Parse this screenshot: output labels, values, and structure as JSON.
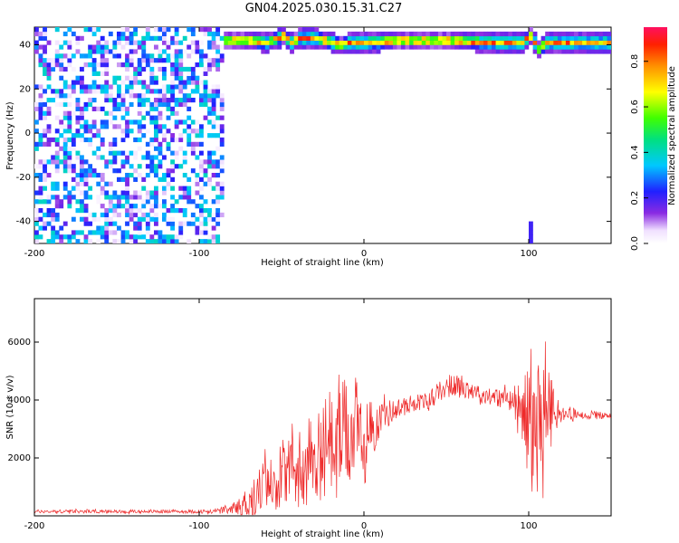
{
  "title": "GN04.2025.030.15.31.C27",
  "chart_data": [
    {
      "type": "heatmap",
      "title": "GN04.2025.030.15.31.C27",
      "xlabel": "Height of straight line (km)",
      "ylabel": "Frequency (Hz)",
      "xlim": [
        -200,
        150
      ],
      "ylim": [
        -50,
        48
      ],
      "x_ticks": [
        "-200",
        "-100",
        "0",
        "100"
      ],
      "y_ticks": [
        "40",
        "20",
        "0",
        "-20",
        "-40"
      ],
      "colorbar": {
        "label": "Normalized spectral amplitude",
        "range": [
          0,
          0.95
        ],
        "ticks": [
          "0.0",
          "0.2",
          "0.4",
          "0.6",
          "0.8"
        ]
      },
      "features": [
        {
          "name": "broadband noise",
          "x_range": [
            -200,
            -85
          ],
          "y_range": [
            -50,
            48
          ],
          "amplitude": [
            0.0,
            0.4
          ]
        },
        {
          "name": "tone band",
          "x_range": [
            -85,
            150
          ],
          "center_hz": 40,
          "peak_amplitude": 0.9
        },
        {
          "name": "isolated streak",
          "x": 100,
          "y_range": [
            -50,
            -42
          ],
          "amplitude": 0.2
        }
      ],
      "band_center": {
        "x": [
          -85,
          -70,
          -60,
          -50,
          -45,
          -40,
          -30,
          -20,
          -15,
          -10,
          0,
          20,
          50,
          80,
          95,
          100,
          105,
          110,
          150
        ],
        "y": [
          41,
          41,
          40,
          43,
          40,
          42,
          42,
          40,
          39,
          40,
          40,
          41,
          41,
          40,
          40,
          43,
          37,
          40,
          40
        ]
      }
    },
    {
      "type": "line",
      "xlabel": "Height of straight line (km)",
      "ylabel": "SNR (10 * v/v)",
      "xlim": [
        -200,
        150
      ],
      "ylim": [
        0,
        7500
      ],
      "x_ticks": [
        "-200",
        "-100",
        "0",
        "100"
      ],
      "y_ticks": [
        "2000",
        "4000",
        "6000"
      ],
      "series": [
        {
          "color": "#ee2a2a",
          "envelope": {
            "x": [
              -200,
              -150,
              -100,
              -80,
              -70,
              -60,
              -50,
              -40,
              -30,
              -20,
              -10,
              -5,
              0,
              10,
              20,
              30,
              40,
              50,
              60,
              70,
              80,
              90,
              95,
              100,
              105,
              110,
              115,
              120,
              130,
              140,
              150
            ],
            "mean": [
              150,
              150,
              150,
              200,
              500,
              1100,
              1400,
              1700,
              2000,
              2400,
              2900,
              2800,
              2500,
              3400,
              3700,
              3900,
              4000,
              4500,
              4500,
              4200,
              4100,
              4000,
              3800,
              3200,
              3000,
              3500,
              3700,
              3500,
              3500,
              3500,
              3400
            ],
            "amp": [
              60,
              60,
              60,
              150,
              600,
              900,
              1200,
              1400,
              1600,
              1800,
              1900,
              2000,
              1500,
              600,
              350,
              300,
              300,
              400,
              400,
              300,
              300,
              500,
              800,
              2000,
              2700,
              2800,
              700,
              250,
              150,
              150,
              150
            ]
          }
        }
      ]
    }
  ]
}
